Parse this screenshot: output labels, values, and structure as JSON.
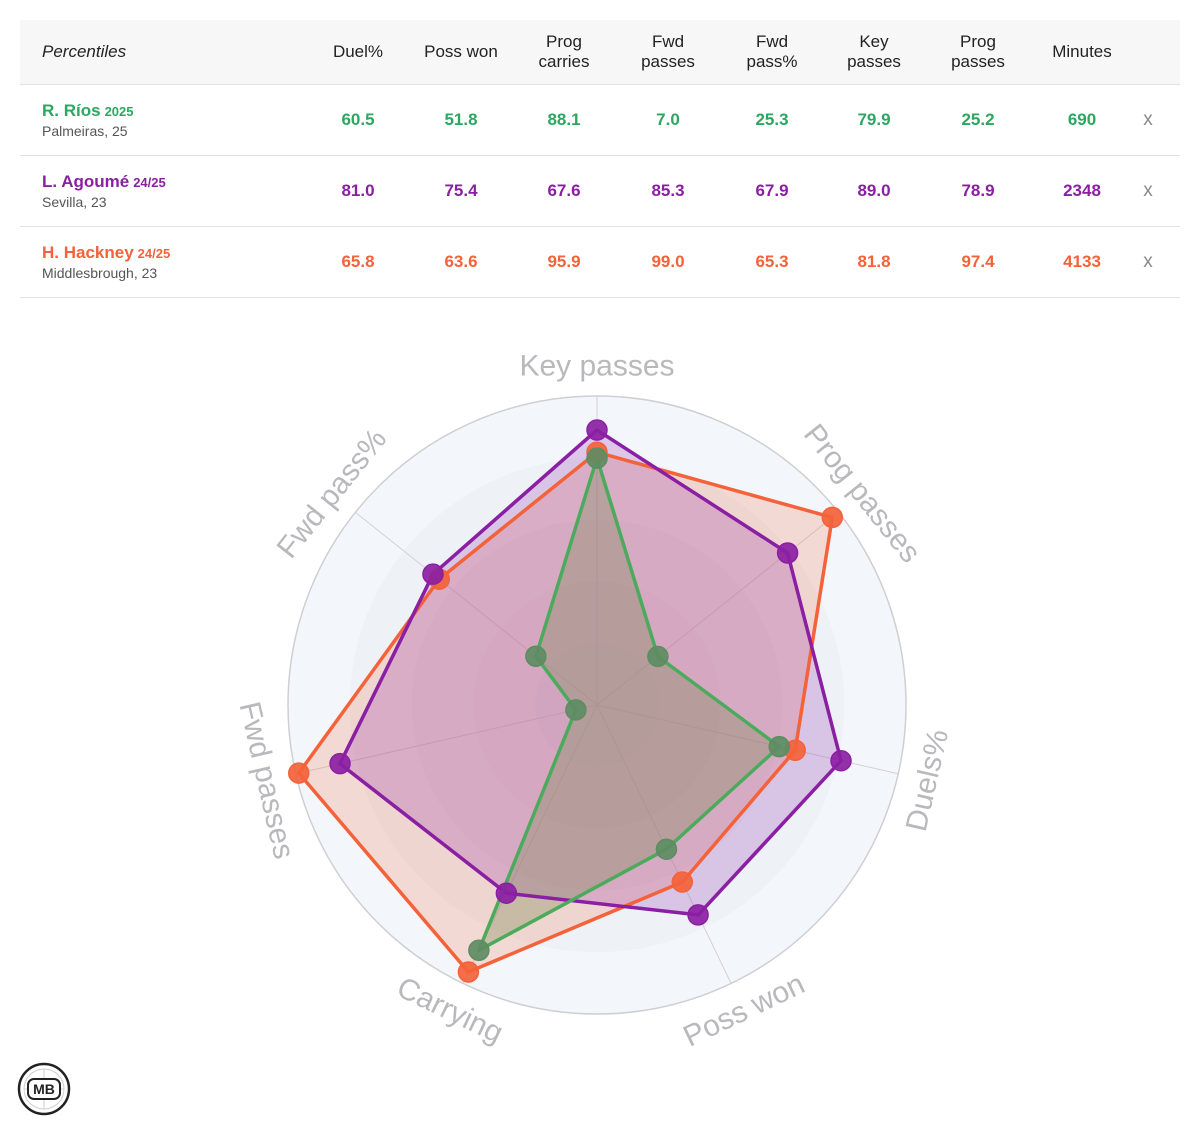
{
  "table": {
    "header_label": "Percentiles",
    "columns": [
      "Duel%",
      "Poss won",
      "Prog carries",
      "Fwd passes",
      "Fwd pass%",
      "Key passes",
      "Prog passes",
      "Minutes"
    ],
    "remove_label": "x",
    "players": [
      {
        "name": "R. Ríos",
        "season": "2025",
        "sub": "Palmeiras, 25",
        "color": "#2aa860",
        "values": [
          "60.5",
          "51.8",
          "88.1",
          "7.0",
          "25.3",
          "79.9",
          "25.2",
          "690"
        ]
      },
      {
        "name": "L. Agoumé",
        "season": "24/25",
        "sub": "Sevilla, 23",
        "color": "#8b1fa3",
        "values": [
          "81.0",
          "75.4",
          "67.6",
          "85.3",
          "67.9",
          "89.0",
          "78.9",
          "2348"
        ]
      },
      {
        "name": "H. Hackney",
        "season": "24/25",
        "sub": "Middlesbrough, 23",
        "color": "#f4623a",
        "values": [
          "65.8",
          "63.6",
          "95.9",
          "99.0",
          "65.3",
          "81.8",
          "97.4",
          "4133"
        ]
      }
    ]
  },
  "chart_data": {
    "type": "radar",
    "axes": [
      "Key passes",
      "Prog passes",
      "Duels%",
      "Poss won",
      "Carrying",
      "Fwd passes",
      "Fwd pass%"
    ],
    "range": [
      0,
      100
    ],
    "series": [
      {
        "name": "R. Ríos",
        "color": "#5e8c63",
        "line_color": "#4caa5c",
        "fill": "rgba(125,140,90,0.35)",
        "values": [
          79.9,
          25.2,
          60.5,
          51.8,
          88.1,
          7.0,
          25.3
        ]
      },
      {
        "name": "L. Agoumé",
        "color": "#8b1fa3",
        "line_color": "#8b1fa3",
        "fill": "rgba(139,31,163,0.22)",
        "values": [
          89.0,
          78.9,
          81.0,
          75.4,
          67.6,
          85.3,
          67.9
        ]
      },
      {
        "name": "H. Hackney",
        "color": "#f4623a",
        "line_color": "#f4623a",
        "fill": "rgba(244,98,58,0.20)",
        "values": [
          81.8,
          97.4,
          65.8,
          63.6,
          95.9,
          99.0,
          65.3
        ]
      }
    ]
  },
  "logo": {
    "text": "MB"
  }
}
